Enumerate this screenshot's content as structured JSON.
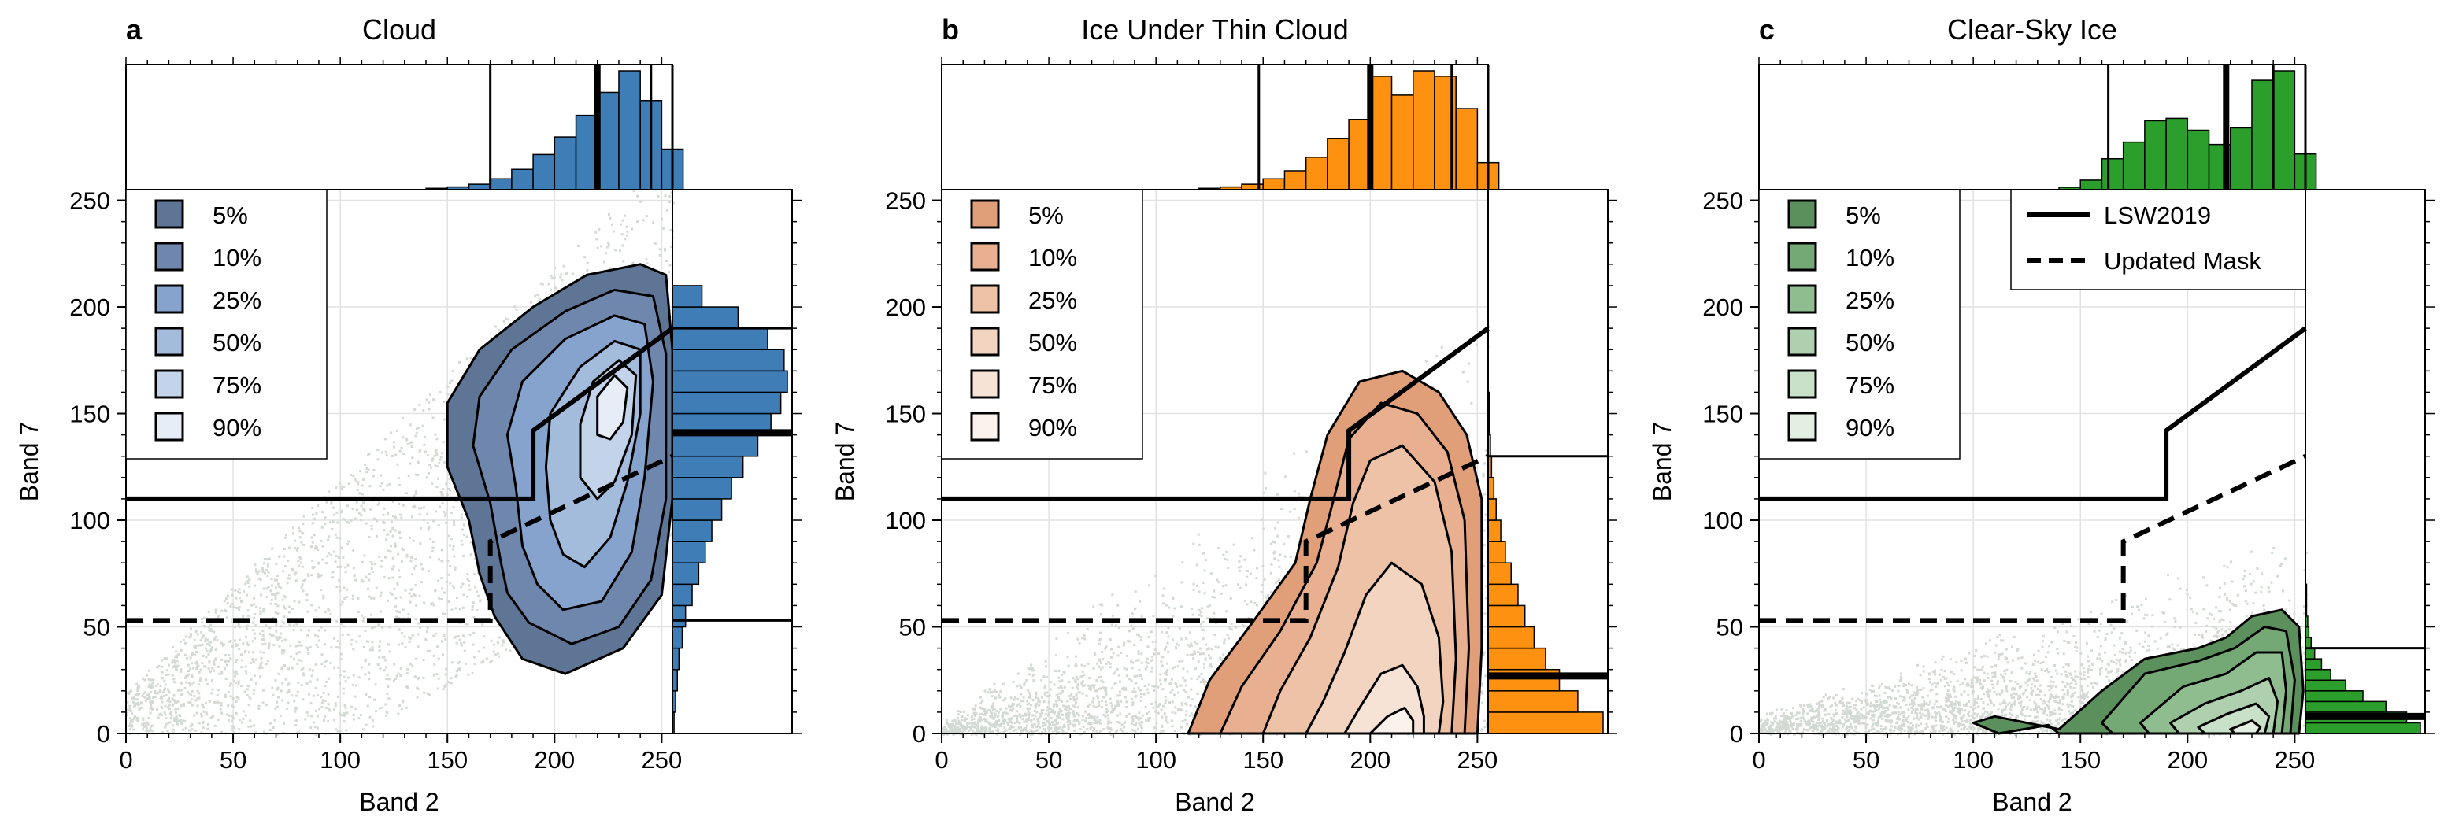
{
  "figure": {
    "panels": [
      {
        "letter": "a",
        "title": "Cloud",
        "color": "#3f7db6",
        "legend": [
          "5%",
          "10%",
          "25%",
          "50%",
          "75%",
          "90%"
        ],
        "legend_colors": [
          "#5f7595",
          "#6f86ad",
          "#86a3cd",
          "#a3bcdc",
          "#c3d3e9",
          "#e6edf6"
        ]
      },
      {
        "letter": "b",
        "title": "Ice Under Thin Cloud",
        "color": "#fe9210",
        "legend": [
          "5%",
          "10%",
          "25%",
          "50%",
          "75%",
          "90%"
        ],
        "legend_colors": [
          "#e09f78",
          "#e8b090",
          "#eec2a6",
          "#f3d4c0",
          "#f7e3d6",
          "#fbf2ec"
        ]
      },
      {
        "letter": "c",
        "title": "Clear-Sky Ice",
        "color": "#2c9e2c",
        "legend": [
          "5%",
          "10%",
          "25%",
          "50%",
          "75%",
          "90%"
        ],
        "legend_colors": [
          "#5b8f5b",
          "#74a874",
          "#8fbd8f",
          "#aed0ae",
          "#c9e0c9",
          "#e2efe2"
        ]
      }
    ],
    "line_legend": [
      "LSW2019",
      "Updated Mask"
    ],
    "scatter_color": "#d3d9d3"
  },
  "chart_data": [
    {
      "type": "scatter",
      "title": "Cloud",
      "xlabel": "Band 2",
      "ylabel": "Band 7",
      "xlim": [
        0,
        255
      ],
      "ylim": [
        0,
        255
      ],
      "xticks": [
        0,
        50,
        100,
        150,
        200,
        250
      ],
      "yticks": [
        0,
        50,
        100,
        150,
        200,
        250
      ],
      "grid": true,
      "legend_location": "top-left",
      "legend": [
        "5%",
        "10%",
        "25%",
        "50%",
        "75%",
        "90%"
      ],
      "threshold_lines": {
        "LSW2019": {
          "x": [
            0,
            190,
            190,
            255
          ],
          "y": [
            110,
            110,
            142,
            190
          ]
        },
        "Updated Mask": {
          "x": [
            0,
            170,
            170,
            255
          ],
          "y": [
            53,
            53,
            90,
            130
          ]
        }
      },
      "histogram_band2": {
        "bins": [
          140,
          150,
          160,
          170,
          180,
          190,
          200,
          210,
          220,
          230,
          240,
          250
        ],
        "values": [
          1,
          2,
          4,
          8,
          15,
          26,
          39,
          55,
          72,
          88,
          66,
          30
        ],
        "quantile_lines": [
          170,
          220,
          245,
          255
        ]
      },
      "histogram_band7": {
        "bins": [
          0,
          10,
          20,
          30,
          40,
          50,
          60,
          70,
          80,
          90,
          100,
          110,
          120,
          130,
          140,
          150,
          160,
          170,
          180,
          190,
          200
        ],
        "values": [
          1,
          2,
          3,
          4,
          6,
          8,
          12,
          16,
          20,
          24,
          30,
          36,
          43,
          52,
          60,
          66,
          70,
          68,
          58,
          40,
          18
        ],
        "quantile_lines": [
          53,
          141,
          190
        ]
      }
    },
    {
      "type": "scatter",
      "title": "Ice Under Thin Cloud",
      "xlabel": "Band 2",
      "ylabel": "Band 7",
      "xlim": [
        0,
        255
      ],
      "ylim": [
        0,
        255
      ],
      "xticks": [
        0,
        50,
        100,
        150,
        200,
        250
      ],
      "yticks": [
        0,
        50,
        100,
        150,
        200,
        250
      ],
      "grid": true,
      "legend_location": "top-left",
      "legend": [
        "5%",
        "10%",
        "25%",
        "50%",
        "75%",
        "90%"
      ],
      "threshold_lines": {
        "LSW2019": {
          "x": [
            0,
            190,
            190,
            255
          ],
          "y": [
            110,
            110,
            142,
            190
          ]
        },
        "Updated Mask": {
          "x": [
            0,
            170,
            170,
            255
          ],
          "y": [
            53,
            53,
            90,
            130
          ]
        }
      },
      "histogram_band2": {
        "bins": [
          120,
          130,
          140,
          150,
          160,
          170,
          180,
          190,
          200,
          210,
          220,
          230,
          240,
          250
        ],
        "values": [
          1,
          2,
          4,
          8,
          14,
          24,
          38,
          52,
          84,
          70,
          88,
          84,
          60,
          20
        ],
        "quantile_lines": [
          148,
          200,
          238,
          255
        ]
      },
      "histogram_band7": {
        "bins": [
          0,
          10,
          20,
          30,
          40,
          50,
          60,
          70,
          80,
          90,
          100,
          110,
          120,
          130,
          140,
          150
        ],
        "values": [
          100,
          78,
          62,
          50,
          40,
          32,
          26,
          20,
          15,
          11,
          7,
          5,
          3,
          2,
          1,
          1
        ],
        "quantile_lines": [
          27,
          130
        ]
      }
    },
    {
      "type": "scatter",
      "title": "Clear-Sky Ice",
      "xlabel": "Band 2",
      "ylabel": "Band 7",
      "xlim": [
        0,
        255
      ],
      "ylim": [
        0,
        255
      ],
      "xticks": [
        0,
        50,
        100,
        150,
        200,
        250
      ],
      "yticks": [
        0,
        50,
        100,
        150,
        200,
        250
      ],
      "grid": true,
      "legend_location": "top-left",
      "legend": [
        "5%",
        "10%",
        "25%",
        "50%",
        "75%",
        "90%"
      ],
      "line_legend_location": "top-right",
      "line_legend": [
        "LSW2019",
        "Updated Mask"
      ],
      "threshold_lines": {
        "LSW2019": {
          "x": [
            0,
            190,
            190,
            255
          ],
          "y": [
            110,
            110,
            142,
            190
          ]
        },
        "Updated Mask": {
          "x": [
            0,
            170,
            170,
            255
          ],
          "y": [
            53,
            53,
            90,
            130
          ]
        }
      },
      "histogram_band2": {
        "bins": [
          140,
          150,
          160,
          170,
          180,
          190,
          200,
          210,
          220,
          230,
          240,
          250
        ],
        "values": [
          2,
          8,
          26,
          40,
          58,
          60,
          50,
          38,
          52,
          92,
          100,
          30
        ],
        "quantile_lines": [
          163,
          218,
          240,
          255
        ]
      },
      "histogram_band7": {
        "bins": [
          0,
          5,
          10,
          15,
          20,
          25,
          30,
          35,
          40,
          45,
          50,
          55,
          60,
          65
        ],
        "values": [
          100,
          88,
          70,
          50,
          35,
          22,
          14,
          8,
          5,
          3,
          2,
          1,
          1,
          1
        ],
        "quantile_lines": [
          8,
          40
        ]
      }
    }
  ]
}
